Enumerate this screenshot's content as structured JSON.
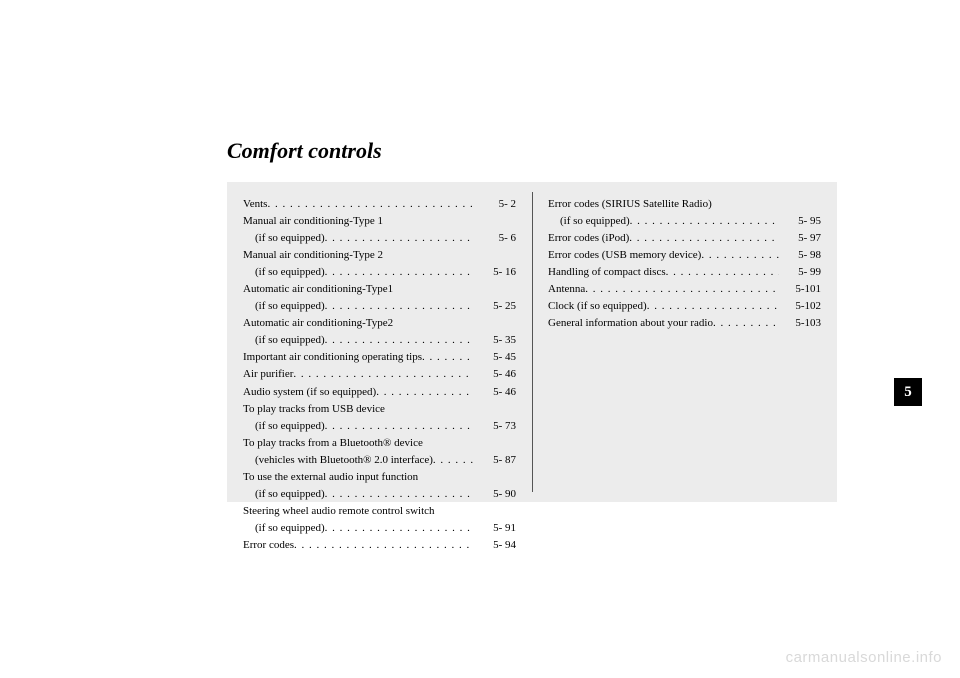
{
  "title": "Comfort controls",
  "section_tab": "5",
  "watermark": "carmanualsonline.info",
  "dots": ". . . . . . . . . . . . . . . . . . . . . . . . . . . . . . . . . . . . . . . . . . . . . . . . . . . . . . . . . . . .",
  "colors": {
    "page_bg": "#ffffff",
    "box_bg": "#ececec",
    "text": "#000000",
    "tab_bg": "#000000",
    "tab_fg": "#ffffff",
    "watermark": "#d9d9d9",
    "divider": "#555555"
  },
  "left": [
    {
      "label": "Vents",
      "page": "5-    2"
    },
    {
      "label": "Manual air conditioning-Type 1",
      "sub": "(if so equipped)",
      "page": "5-    6"
    },
    {
      "label": "Manual air conditioning-Type 2",
      "sub": "(if so equipped)",
      "page": "5-  16"
    },
    {
      "label": "Automatic air conditioning-Type1",
      "sub": "(if so equipped)",
      "page": "5-  25"
    },
    {
      "label": "Automatic air conditioning-Type2",
      "sub": "(if so equipped)",
      "page": "5-  35"
    },
    {
      "label": "Important air conditioning operating tips",
      "page": "5-  45"
    },
    {
      "label": "Air purifier",
      "page": "5-  46"
    },
    {
      "label": "Audio system (if so equipped)",
      "page": "5-  46"
    },
    {
      "label": "To play tracks from USB device",
      "sub": "(if so equipped)",
      "page": "5-  73"
    },
    {
      "label": "To play tracks from a Bluetooth® device",
      "sub": "(vehicles with Bluetooth® 2.0 interface)",
      "page": "5-  87"
    },
    {
      "label": "To use the external audio input function",
      "sub": "(if so equipped)",
      "page": "5-  90"
    },
    {
      "label": "Steering wheel audio remote control switch",
      "sub": "(if so equipped)",
      "page": "5-  91"
    },
    {
      "label": "Error codes",
      "page": "5-  94"
    }
  ],
  "right": [
    {
      "label": "Error codes (SIRIUS Satellite Radio)",
      "sub": "(if so equipped)",
      "page": "5-  95"
    },
    {
      "label": "Error codes (iPod)",
      "page": "5-  97"
    },
    {
      "label": "Error codes (USB memory device)",
      "page": "5-  98"
    },
    {
      "label": "Handling of compact discs",
      "page": "5-  99"
    },
    {
      "label": "Antenna",
      "page": "5-101"
    },
    {
      "label": "Clock (if so equipped)",
      "page": "5-102"
    },
    {
      "label": "General information about your radio",
      "page": "5-103"
    }
  ]
}
